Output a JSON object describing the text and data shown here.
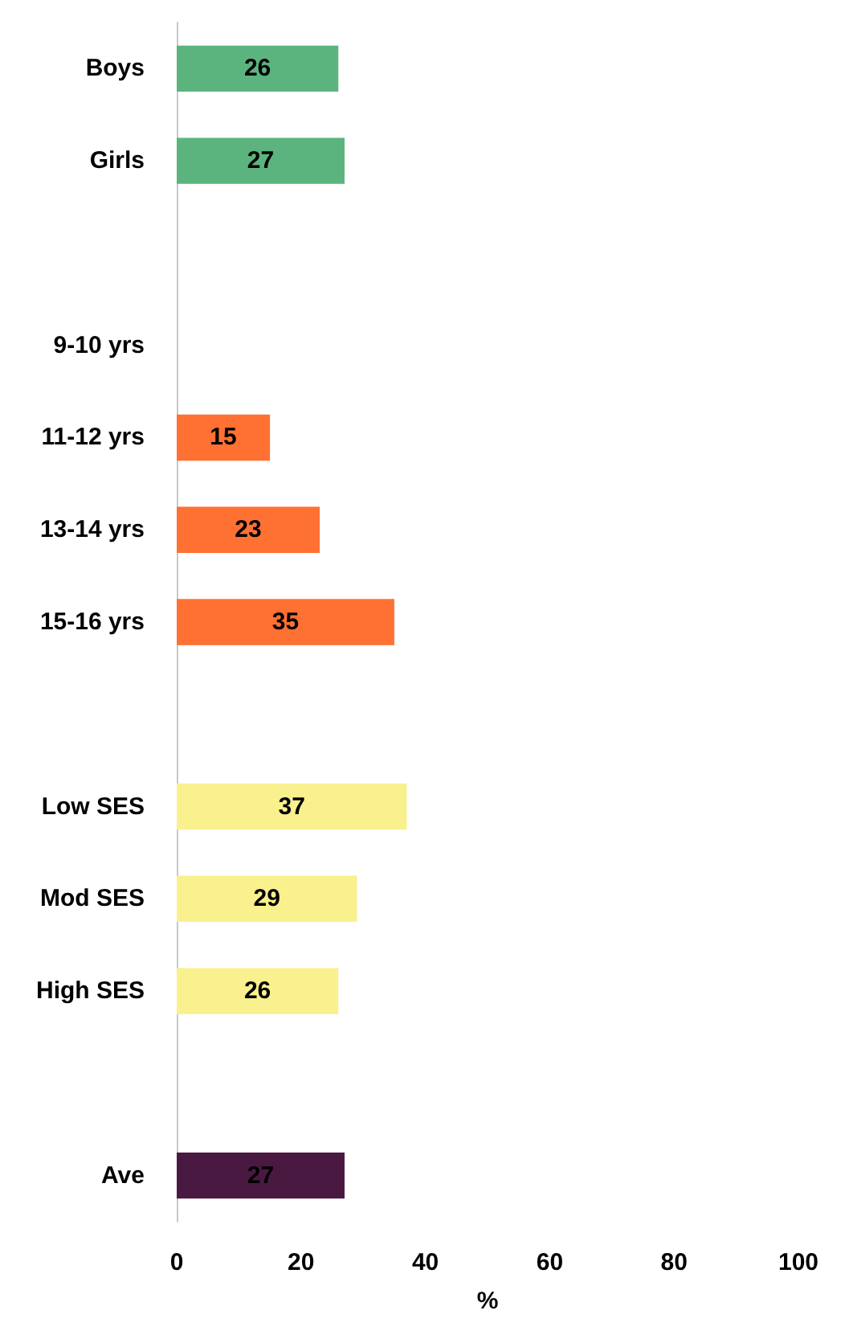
{
  "chart_data": {
    "type": "bar",
    "orientation": "horizontal",
    "categories": [
      "Boys",
      "Girls",
      null,
      "9-10 yrs",
      "11-12 yrs",
      "13-14 yrs",
      "15-16 yrs",
      null,
      "Low SES",
      "Mod SES",
      "High SES",
      null,
      "Ave"
    ],
    "values": [
      26,
      27,
      null,
      null,
      15,
      23,
      35,
      null,
      37,
      29,
      26,
      null,
      27
    ],
    "colors": [
      "#5bb47e",
      "#5bb47e",
      null,
      null,
      "#ff7033",
      "#ff7033",
      "#ff7033",
      null,
      "#f9f08e",
      "#f9f08e",
      "#f9f08e",
      null,
      "#4a1942"
    ],
    "data_labels": true,
    "xlim": [
      0,
      100
    ],
    "xticks": [
      0,
      20,
      40,
      60,
      80,
      100
    ],
    "xlabel": "%",
    "grid": false
  }
}
